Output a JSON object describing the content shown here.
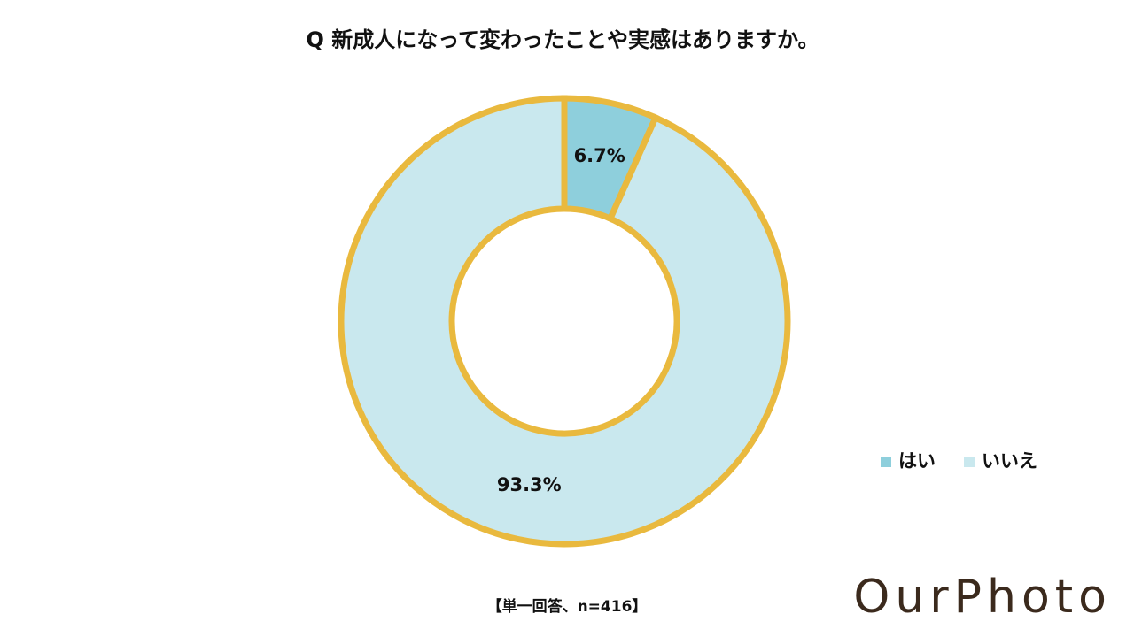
{
  "chart_data": {
    "type": "donut",
    "title": "Q 新成人になって変わったことや実感はありますか。",
    "categories": [
      "はい",
      "いいえ"
    ],
    "values": [
      6.7,
      93.3
    ],
    "value_labels": [
      "6.7%",
      "93.3%"
    ],
    "colors": [
      "#8ecfdc",
      "#c9e8ee"
    ],
    "edge_color": "#e9b93e",
    "legend": "right",
    "note": "【単一回答、n=416】",
    "logo": "OurPhoto"
  }
}
